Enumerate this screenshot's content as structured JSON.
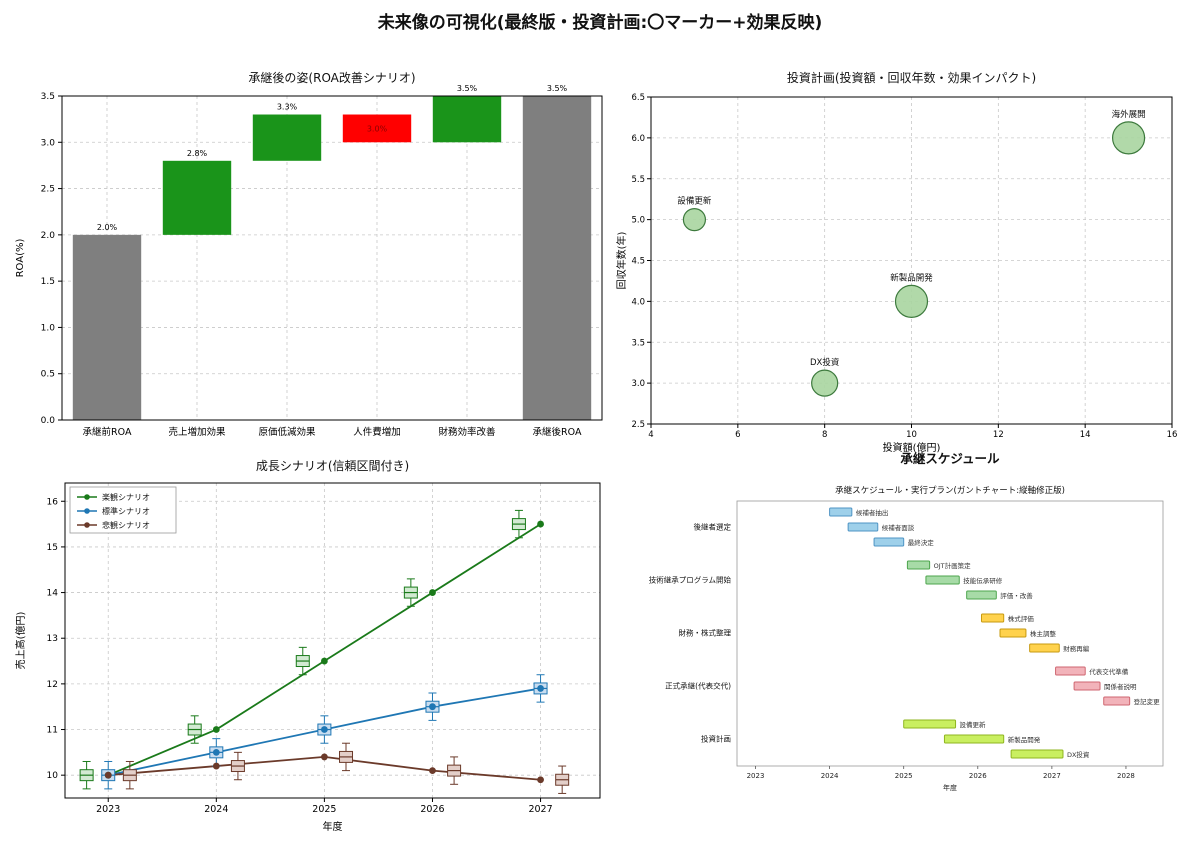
{
  "page": {
    "title": "未来像の可視化(最終版・投資計画:〇マーカー+効果反映)"
  },
  "chart_data": [
    {
      "id": "waterfall",
      "type": "bar",
      "variant": "waterfall",
      "title": "承継後の姿(ROA改善シナリオ)",
      "ylabel": "ROA(%)",
      "ylim": [
        0,
        3.5
      ],
      "ytick_step": 0.5,
      "categories": [
        "承継前ROA",
        "売上増加効果",
        "原価低減効果",
        "人件費増加",
        "財務効率改善",
        "承継後ROA"
      ],
      "bars": [
        {
          "category": "承継前ROA",
          "start": 0.0,
          "end": 2.0,
          "color": "#7f7f7f",
          "value_label": "2.0%",
          "label_pos": "above",
          "label_color": "#000000"
        },
        {
          "category": "売上増加効果",
          "start": 2.0,
          "end": 2.8,
          "color": "#1a941a",
          "value_label": "2.8%",
          "label_pos": "above",
          "label_color": "#000000"
        },
        {
          "category": "原価低減効果",
          "start": 2.8,
          "end": 3.3,
          "color": "#1a941a",
          "value_label": "3.3%",
          "label_pos": "above",
          "label_color": "#000000"
        },
        {
          "category": "人件費増加",
          "start": 3.3,
          "end": 3.0,
          "color": "#ff0000",
          "value_label": "3.0%",
          "label_pos": "inside",
          "label_color": "#8b0000"
        },
        {
          "category": "財務効率改善",
          "start": 3.0,
          "end": 3.5,
          "color": "#1a941a",
          "value_label": "3.5%",
          "label_pos": "above",
          "label_color": "#000000"
        },
        {
          "category": "承継後ROA",
          "start": 0.0,
          "end": 3.5,
          "color": "#7f7f7f",
          "value_label": "3.5%",
          "label_pos": "above",
          "label_color": "#000000"
        }
      ]
    },
    {
      "id": "bubble",
      "type": "scatter",
      "title": "投資計画(投資額・回収年数・効果インパクト)",
      "xlabel": "投資額(億円)",
      "ylabel": "回収年数(年)",
      "xlim": [
        4,
        16
      ],
      "xticks": [
        4,
        6,
        8,
        10,
        12,
        14,
        16
      ],
      "ylim": [
        2.5,
        6.5
      ],
      "ytick_step": 0.5,
      "bubble_fill": "#a8d5a0",
      "bubble_edge": "#3d7a3d",
      "points": [
        {
          "label": "設備更新",
          "x": 5,
          "y": 5.0,
          "r": 11
        },
        {
          "label": "DX投資",
          "x": 8,
          "y": 3.0,
          "r": 13
        },
        {
          "label": "新製品開発",
          "x": 10,
          "y": 4.0,
          "r": 16
        },
        {
          "label": "海外展開",
          "x": 15,
          "y": 6.0,
          "r": 16
        }
      ]
    },
    {
      "id": "growth",
      "type": "line",
      "title": "成長シナリオ(信頼区間付き)",
      "xlabel": "年度",
      "ylabel": "売上高(億円)",
      "x": [
        2023,
        2024,
        2025,
        2026,
        2027
      ],
      "ylim": [
        9.5,
        16.4
      ],
      "yticks": [
        10,
        11,
        12,
        13,
        14,
        15,
        16
      ],
      "series": [
        {
          "name": "楽観シナリオ",
          "color": "#1a7a1a",
          "box_fill": "#d2ead2",
          "values": [
            10.0,
            11.0,
            12.5,
            14.0,
            15.5
          ],
          "box_offset": -0.2
        },
        {
          "name": "標準シナリオ",
          "color": "#1f77b4",
          "box_fill": "#c9ddf0",
          "values": [
            10.0,
            10.5,
            11.0,
            11.5,
            11.9
          ],
          "box_offset": 0.0
        },
        {
          "name": "悲観シナリオ",
          "color": "#6b3a2a",
          "box_fill": "#e3cfc9",
          "values": [
            10.0,
            10.2,
            10.4,
            10.1,
            9.9
          ],
          "box_offset": 0.2
        }
      ]
    },
    {
      "id": "gantt",
      "type": "bar",
      "variant": "gantt",
      "outer_title": "承継スケジュール",
      "title": "承継スケジュール・実行プラン(ガントチャート:縦軸修正版)",
      "xlabel": "年度",
      "xlim": [
        2022.75,
        2028.5
      ],
      "xticks": [
        2023,
        2024,
        2025,
        2026,
        2027,
        2028
      ],
      "groups": [
        {
          "name": "後継者選定",
          "fill": "#9ed0ea",
          "edge": "#4f94c4",
          "tasks": [
            {
              "label": "候補者抽出",
              "start": 2024.0,
              "end": 2024.3
            },
            {
              "label": "候補者面談",
              "start": 2024.25,
              "end": 2024.65
            },
            {
              "label": "最終決定",
              "start": 2024.6,
              "end": 2025.0
            }
          ]
        },
        {
          "name": "技術継承プログラム開始",
          "fill": "#a7dba7",
          "edge": "#4da54d",
          "tasks": [
            {
              "label": "OJT計画策定",
              "start": 2025.05,
              "end": 2025.35
            },
            {
              "label": "技能伝承研修",
              "start": 2025.3,
              "end": 2025.75
            },
            {
              "label": "評価・改善",
              "start": 2025.85,
              "end": 2026.25
            }
          ]
        },
        {
          "name": "財務・株式整理",
          "fill": "#ffd24d",
          "edge": "#c79a10",
          "tasks": [
            {
              "label": "株式評価",
              "start": 2026.05,
              "end": 2026.35
            },
            {
              "label": "株主調整",
              "start": 2026.3,
              "end": 2026.65
            },
            {
              "label": "財務再編",
              "start": 2026.7,
              "end": 2027.1
            }
          ]
        },
        {
          "name": "正式承継(代表交代)",
          "fill": "#f2b3ba",
          "edge": "#cf6670",
          "tasks": [
            {
              "label": "代表交代準備",
              "start": 2027.05,
              "end": 2027.45
            },
            {
              "label": "関係者説明",
              "start": 2027.3,
              "end": 2027.65
            },
            {
              "label": "登記変更",
              "start": 2027.7,
              "end": 2028.05
            }
          ]
        },
        {
          "name": "投資計画",
          "fill": "#c9ef60",
          "edge": "#8fb520",
          "tasks": [
            {
              "label": "設備更新",
              "start": 2025.0,
              "end": 2025.7
            },
            {
              "label": "新製品開発",
              "start": 2025.55,
              "end": 2026.35
            },
            {
              "label": "DX投資",
              "start": 2026.45,
              "end": 2027.15
            }
          ]
        }
      ]
    }
  ]
}
